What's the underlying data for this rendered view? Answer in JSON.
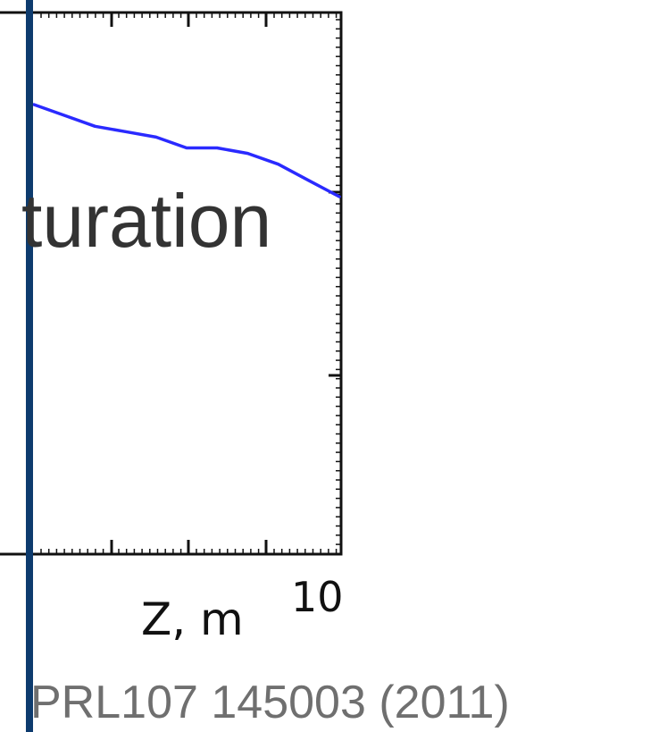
{
  "overlay_text": "turation",
  "citation": "PRL107 145003 (2011)",
  "colors": {
    "series": "#2a2aff",
    "axes": "#111111",
    "text": "#333333",
    "citation": "#6f6f6f",
    "left_bar": "#0d3b6e"
  },
  "chart_data": {
    "type": "line",
    "title": "",
    "xlabel": "Z, m",
    "ylabel": "",
    "xlim": [
      0,
      10
    ],
    "x_tick_labels": [
      "10"
    ],
    "grid": false,
    "series": [
      {
        "values": [
          {
            "x": 0.0,
            "y": 0.83
          },
          {
            "x": 1.0,
            "y": 0.81
          },
          {
            "x": 2.0,
            "y": 0.79
          },
          {
            "x": 3.0,
            "y": 0.78
          },
          {
            "x": 4.0,
            "y": 0.77
          },
          {
            "x": 5.0,
            "y": 0.75
          },
          {
            "x": 6.0,
            "y": 0.75
          },
          {
            "x": 7.0,
            "y": 0.74
          },
          {
            "x": 8.0,
            "y": 0.72
          },
          {
            "x": 9.0,
            "y": 0.69
          },
          {
            "x": 10.0,
            "y": 0.66
          }
        ]
      }
    ]
  }
}
